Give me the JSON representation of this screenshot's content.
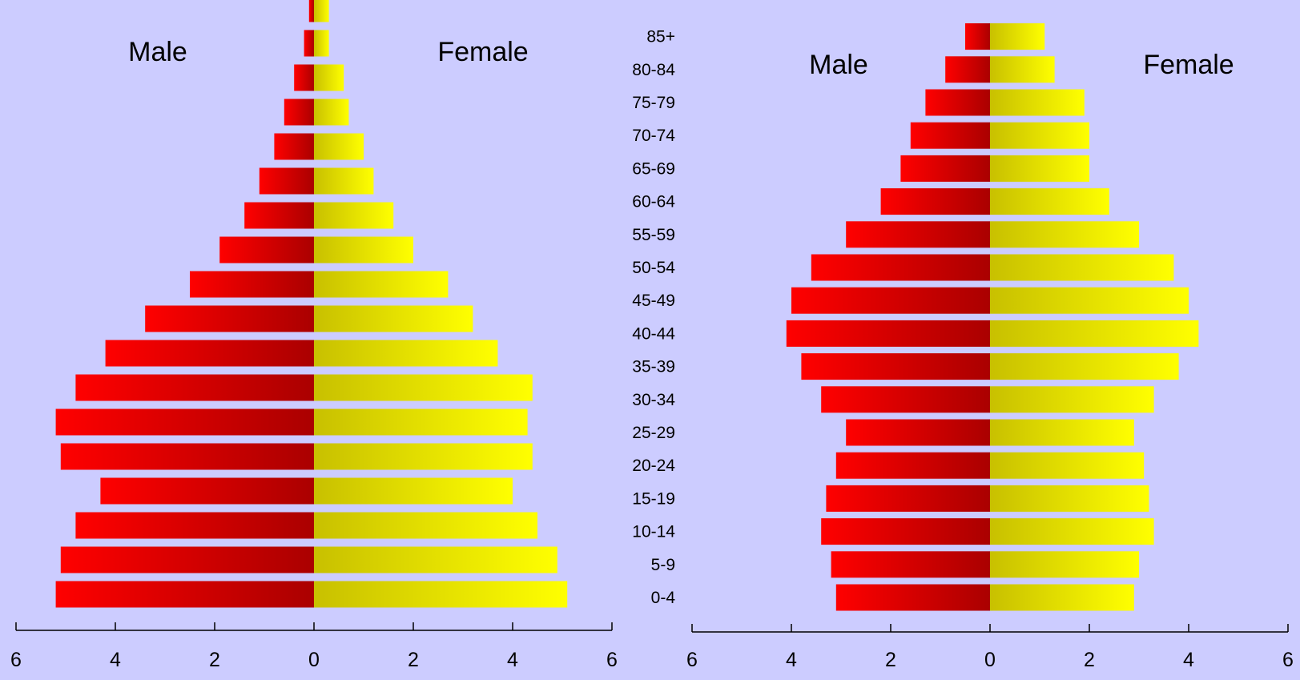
{
  "age_groups": [
    "0-4",
    "5-9",
    "10-14",
    "15-19",
    "20-24",
    "25-29",
    "30-34",
    "35-39",
    "40-44",
    "45-49",
    "50-54",
    "55-59",
    "60-64",
    "65-69",
    "70-74",
    "75-79",
    "80-84",
    "85+"
  ],
  "chart_data": [
    {
      "type": "bar",
      "subtype": "population-pyramid",
      "categories": [
        "0-4",
        "5-9",
        "10-14",
        "15-19",
        "20-24",
        "25-29",
        "30-34",
        "35-39",
        "40-44",
        "45-49",
        "50-54",
        "55-59",
        "60-64",
        "65-69",
        "70-74",
        "75-79",
        "80-84",
        "85+"
      ],
      "series": [
        {
          "name": "Male",
          "color": "#FF0000",
          "values": [
            5.2,
            5.1,
            4.8,
            4.3,
            5.1,
            5.2,
            4.8,
            4.2,
            3.4,
            2.5,
            1.9,
            1.4,
            1.1,
            0.8,
            0.6,
            0.4,
            0.2,
            0.1
          ]
        },
        {
          "name": "Female",
          "color": "#FFFF00",
          "values": [
            5.1,
            4.9,
            4.5,
            4.0,
            4.4,
            4.3,
            4.4,
            3.7,
            3.2,
            2.7,
            2.0,
            1.6,
            1.2,
            1.0,
            0.7,
            0.6,
            0.3,
            0.3
          ]
        }
      ],
      "xlim": [
        -6,
        6
      ],
      "x_ticks": [
        6,
        4,
        2,
        0,
        2,
        4,
        6
      ],
      "legend": [
        "Male",
        "Female"
      ]
    },
    {
      "type": "bar",
      "subtype": "population-pyramid",
      "categories": [
        "0-4",
        "5-9",
        "10-14",
        "15-19",
        "20-24",
        "25-29",
        "30-34",
        "35-39",
        "40-44",
        "45-49",
        "50-54",
        "55-59",
        "60-64",
        "65-69",
        "70-74",
        "75-79",
        "80-84",
        "85+"
      ],
      "series": [
        {
          "name": "Male",
          "color": "#FF0000",
          "values": [
            3.1,
            3.2,
            3.4,
            3.3,
            3.1,
            2.9,
            3.4,
            3.8,
            4.1,
            4.0,
            3.6,
            2.9,
            2.2,
            1.8,
            1.6,
            1.3,
            0.9,
            0.5
          ]
        },
        {
          "name": "Female",
          "color": "#FFFF00",
          "values": [
            2.9,
            3.0,
            3.3,
            3.2,
            3.1,
            2.9,
            3.3,
            3.8,
            4.2,
            4.0,
            3.7,
            3.0,
            2.4,
            2.0,
            2.0,
            1.9,
            1.3,
            1.1
          ]
        }
      ],
      "xlim": [
        -6,
        6
      ],
      "x_ticks": [
        6,
        4,
        2,
        0,
        2,
        4,
        6
      ],
      "legend": [
        "Male",
        "Female"
      ]
    }
  ]
}
